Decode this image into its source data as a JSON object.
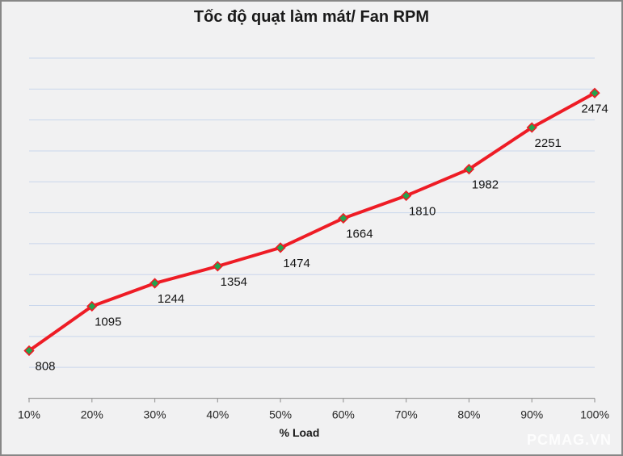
{
  "chart_data": {
    "type": "line",
    "title": "Tốc độ quạt làm mát/ Fan RPM",
    "xlabel": "% Load",
    "ylabel": "",
    "categories": [
      "10%",
      "20%",
      "30%",
      "40%",
      "50%",
      "60%",
      "70%",
      "80%",
      "90%",
      "100%"
    ],
    "series": [
      {
        "name": "Fan RPM",
        "values": [
          808,
          1095,
          1244,
          1354,
          1474,
          1664,
          1810,
          1982,
          2251,
          2474
        ]
      }
    ],
    "ylim": [
      500,
      2700
    ],
    "y_major_unit": 200,
    "grid": true,
    "y_axis_labels": false,
    "legend_position": "none",
    "data_labels": true,
    "colors": {
      "line": "#ee1c25",
      "marker_fill": "#22a44e",
      "marker_stroke": "#ee1c25",
      "gridline": "#c9d6ec",
      "axis": "#9d9d9d",
      "title_text": "#1a1a1a",
      "label_text": "#141414",
      "tick_text": "#262626",
      "background": "#f1f1f2",
      "frame_border": "#878787"
    }
  },
  "watermark": "PCMAG.VN"
}
